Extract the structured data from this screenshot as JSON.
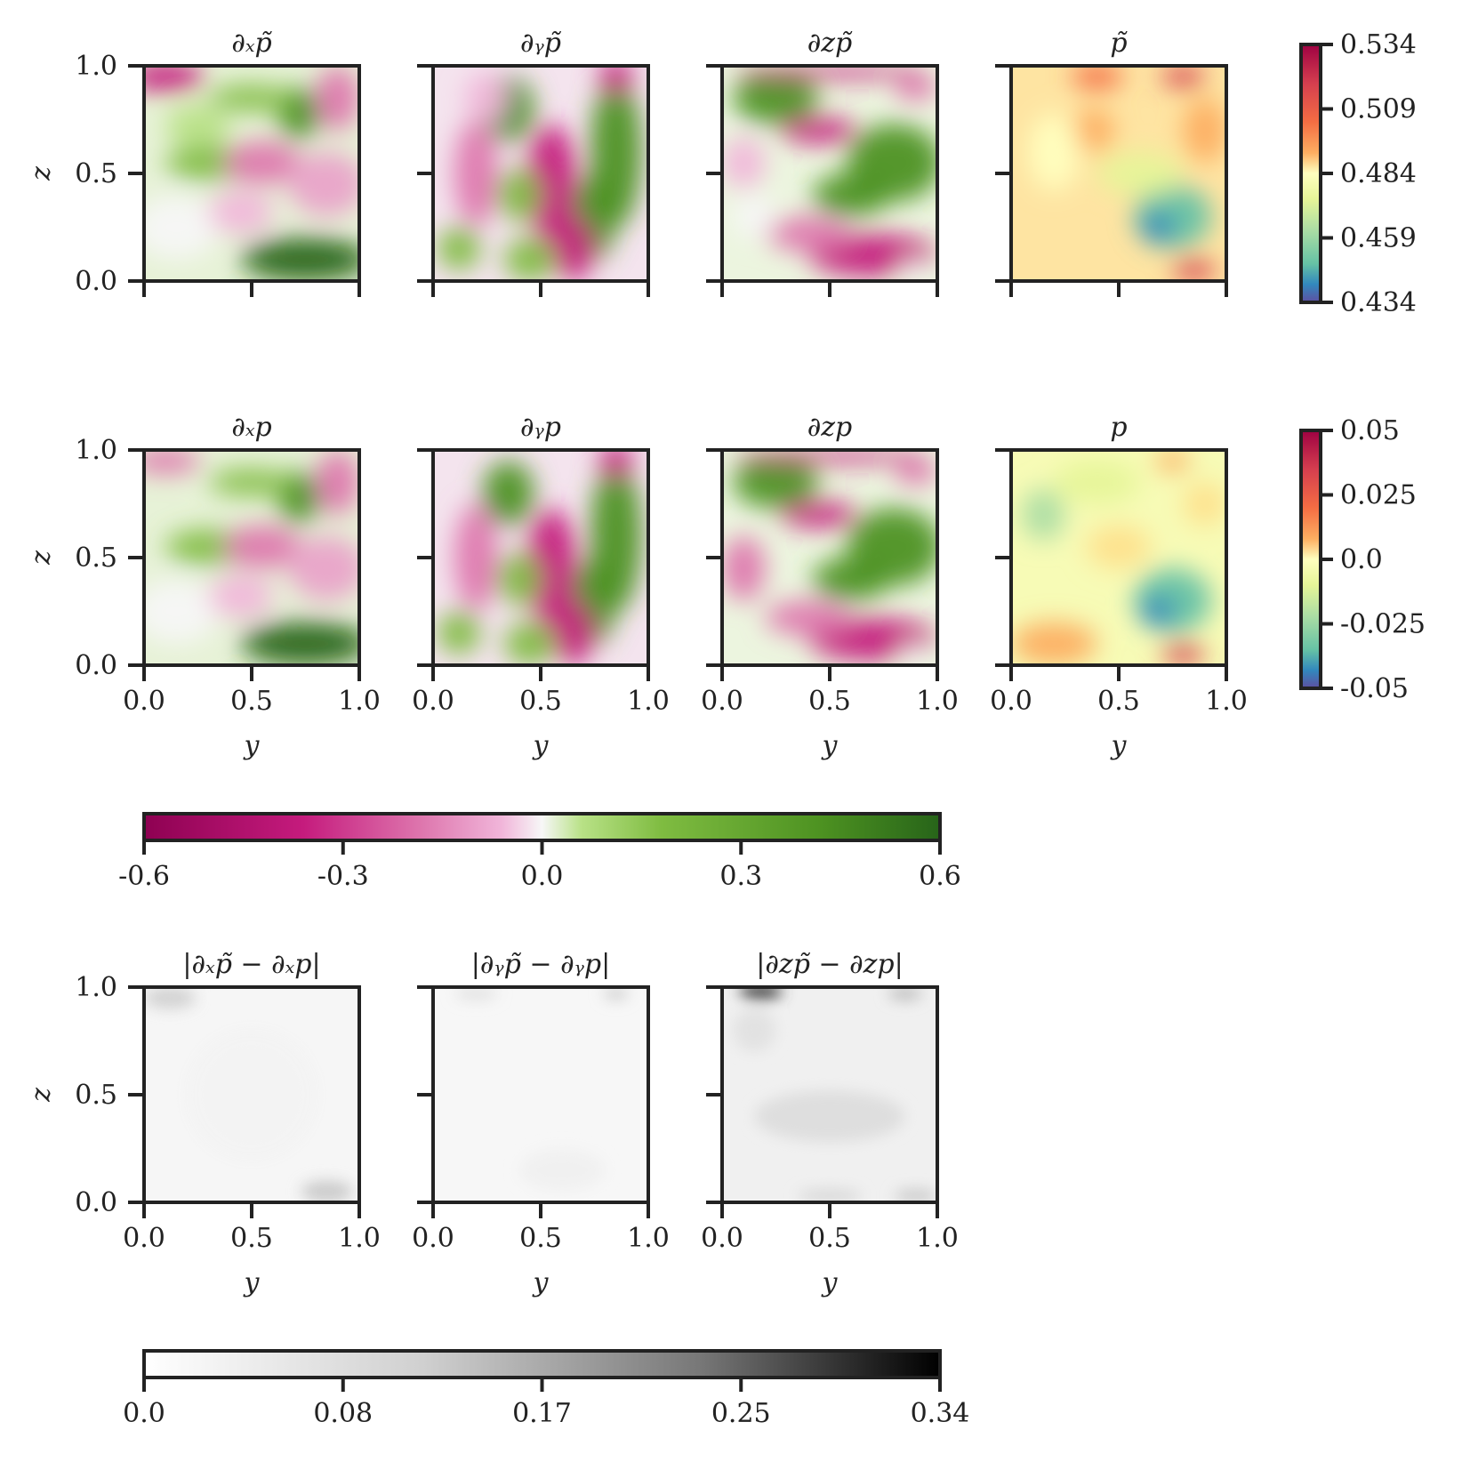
{
  "figure": {
    "axis_label_x": "y",
    "axis_label_z": "z"
  },
  "chart_data": [
    {
      "id": "dx-ptilde",
      "type": "heatmap",
      "title": "∂ₓp̃",
      "xlabel": "",
      "ylabel": "z",
      "xlim": [
        0.0,
        1.0
      ],
      "ylim": [
        0.0,
        1.0
      ],
      "x_ticks": [],
      "y_ticks": [
        "0.0",
        "0.5",
        "1.0"
      ],
      "colorscale": "PiYG",
      "vmin": -0.6,
      "vmax": 0.6
    },
    {
      "id": "dy-ptilde",
      "type": "heatmap",
      "title": "∂ᵧp̃",
      "xlabel": "",
      "ylabel": "",
      "xlim": [
        0.0,
        1.0
      ],
      "ylim": [
        0.0,
        1.0
      ],
      "x_ticks": [],
      "y_ticks": [],
      "colorscale": "PiYG",
      "vmin": -0.6,
      "vmax": 0.6
    },
    {
      "id": "dz-ptilde",
      "type": "heatmap",
      "title": "∂zp̃",
      "xlabel": "",
      "ylabel": "",
      "xlim": [
        0.0,
        1.0
      ],
      "ylim": [
        0.0,
        1.0
      ],
      "x_ticks": [],
      "y_ticks": [],
      "colorscale": "PiYG",
      "vmin": -0.6,
      "vmax": 0.6
    },
    {
      "id": "ptilde",
      "type": "heatmap",
      "title": "p̃",
      "xlabel": "",
      "ylabel": "",
      "xlim": [
        0.0,
        1.0
      ],
      "ylim": [
        0.0,
        1.0
      ],
      "x_ticks": [],
      "y_ticks": [],
      "colorscale": "Spectral_r",
      "vmin": 0.434,
      "vmax": 0.534
    },
    {
      "id": "dx-p",
      "type": "heatmap",
      "title": "∂ₓp",
      "xlabel": "y",
      "ylabel": "z",
      "xlim": [
        0.0,
        1.0
      ],
      "ylim": [
        0.0,
        1.0
      ],
      "x_ticks": [
        "0.0",
        "0.5",
        "1.0"
      ],
      "y_ticks": [
        "0.0",
        "0.5",
        "1.0"
      ],
      "colorscale": "PiYG",
      "vmin": -0.6,
      "vmax": 0.6
    },
    {
      "id": "dy-p",
      "type": "heatmap",
      "title": "∂ᵧp",
      "xlabel": "y",
      "ylabel": "",
      "xlim": [
        0.0,
        1.0
      ],
      "ylim": [
        0.0,
        1.0
      ],
      "x_ticks": [
        "0.0",
        "0.5",
        "1.0"
      ],
      "y_ticks": [],
      "colorscale": "PiYG",
      "vmin": -0.6,
      "vmax": 0.6
    },
    {
      "id": "dz-p",
      "type": "heatmap",
      "title": "∂zp",
      "xlabel": "y",
      "ylabel": "",
      "xlim": [
        0.0,
        1.0
      ],
      "ylim": [
        0.0,
        1.0
      ],
      "x_ticks": [
        "0.0",
        "0.5",
        "1.0"
      ],
      "y_ticks": [],
      "colorscale": "PiYG",
      "vmin": -0.6,
      "vmax": 0.6
    },
    {
      "id": "p",
      "type": "heatmap",
      "title": "p",
      "xlabel": "y",
      "ylabel": "",
      "xlim": [
        0.0,
        1.0
      ],
      "ylim": [
        0.0,
        1.0
      ],
      "x_ticks": [
        "0.0",
        "0.5",
        "1.0"
      ],
      "y_ticks": [],
      "colorscale": "Spectral_r",
      "vmin": -0.05,
      "vmax": 0.05
    },
    {
      "id": "err-dx",
      "type": "heatmap",
      "title": "|∂ₓp̃ − ∂ₓp|",
      "xlabel": "y",
      "ylabel": "z",
      "xlim": [
        0.0,
        1.0
      ],
      "ylim": [
        0.0,
        1.0
      ],
      "x_ticks": [
        "0.0",
        "0.5",
        "1.0"
      ],
      "y_ticks": [
        "0.0",
        "0.5",
        "1.0"
      ],
      "colorscale": "Greys",
      "vmin": 0.0,
      "vmax": 0.34
    },
    {
      "id": "err-dy",
      "type": "heatmap",
      "title": "|∂ᵧp̃ − ∂ᵧp|",
      "xlabel": "y",
      "ylabel": "",
      "xlim": [
        0.0,
        1.0
      ],
      "ylim": [
        0.0,
        1.0
      ],
      "x_ticks": [
        "0.0",
        "0.5",
        "1.0"
      ],
      "y_ticks": [],
      "colorscale": "Greys",
      "vmin": 0.0,
      "vmax": 0.34
    },
    {
      "id": "err-dz",
      "type": "heatmap",
      "title": "|∂zp̃ − ∂zp|",
      "xlabel": "y",
      "ylabel": "",
      "xlim": [
        0.0,
        1.0
      ],
      "ylim": [
        0.0,
        1.0
      ],
      "x_ticks": [
        "0.0",
        "0.5",
        "1.0"
      ],
      "y_ticks": [],
      "colorscale": "Greys",
      "vmin": 0.0,
      "vmax": 0.34
    }
  ],
  "colorbars": [
    {
      "id": "cb-ptilde",
      "orientation": "vertical",
      "colorscale": "Spectral_r",
      "ticks": [
        "0.534",
        "0.509",
        "0.484",
        "0.459",
        "0.434"
      ]
    },
    {
      "id": "cb-p",
      "orientation": "vertical",
      "colorscale": "Spectral_r",
      "ticks": [
        "0.05",
        "0.025",
        "0.0",
        "-0.025",
        "-0.05"
      ]
    },
    {
      "id": "cb-grad",
      "orientation": "horizontal",
      "colorscale": "PiYG",
      "ticks": [
        "-0.6",
        "-0.3",
        "0.0",
        "0.3",
        "0.6"
      ]
    },
    {
      "id": "cb-err",
      "orientation": "horizontal",
      "colorscale": "Greys",
      "ticks": [
        "0.0",
        "0.08",
        "0.17",
        "0.25",
        "0.34"
      ]
    }
  ],
  "colors": {
    "axes": "#222222",
    "piyg_neg": "#8e0152",
    "piyg_mid": "#f7f7f7",
    "piyg_pos": "#276419",
    "spectral_low": "#5e4fa2",
    "spectral_high": "#9e0142"
  }
}
